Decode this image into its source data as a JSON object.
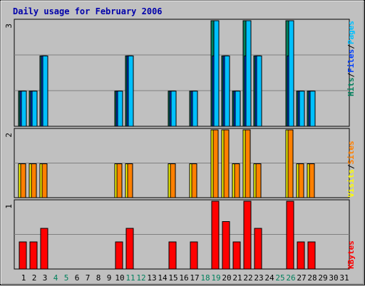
{
  "title": "Daily usage for February 2006",
  "colors": {
    "background": "#c0c0c0",
    "plot": "#c0c0c0",
    "title": "#0000aa",
    "hits": "#00805c",
    "files": "#0040ff",
    "pages": "#00c0ff",
    "visits": "#ffff00",
    "sites": "#ff8000",
    "kbytes": "#ff0000",
    "weekend_day": "#00805c",
    "weekday": "#000000"
  },
  "legend_top": [
    "Hits",
    "/",
    "Files",
    "/",
    "Pages"
  ],
  "legend_mid": [
    "Visits",
    "/",
    "Sites"
  ],
  "legend_bottom": [
    "KBytes"
  ],
  "y_max_labels": {
    "top": "3",
    "mid": "2",
    "bottom": "1"
  },
  "days": [
    "1",
    "2",
    "3",
    "4",
    "5",
    "6",
    "7",
    "8",
    "9",
    "10",
    "11",
    "12",
    "13",
    "14",
    "15",
    "16",
    "17",
    "18",
    "19",
    "20",
    "21",
    "22",
    "23",
    "24",
    "25",
    "26",
    "27",
    "28",
    "29",
    "30",
    "31"
  ],
  "weekend_days": [
    "4",
    "5",
    "11",
    "12",
    "18",
    "19",
    "25",
    "26"
  ],
  "chart_data": [
    {
      "type": "bar",
      "name": "hits-files-pages",
      "categories": [
        "1",
        "2",
        "3",
        "4",
        "5",
        "6",
        "7",
        "8",
        "9",
        "10",
        "11",
        "12",
        "13",
        "14",
        "15",
        "16",
        "17",
        "18",
        "19",
        "20",
        "21",
        "22",
        "23",
        "24",
        "25",
        "26",
        "27",
        "28",
        "29",
        "30",
        "31"
      ],
      "ylim": [
        0,
        3
      ],
      "series": [
        {
          "name": "Hits",
          "values": [
            1,
            1,
            2,
            0,
            0,
            0,
            0,
            0,
            0,
            1,
            2,
            0,
            0,
            0,
            1,
            0,
            1,
            0,
            3,
            2,
            1,
            3,
            2,
            0,
            0,
            3,
            1,
            1,
            0,
            0,
            0
          ]
        },
        {
          "name": "Files",
          "values": [
            1,
            1,
            2,
            0,
            0,
            0,
            0,
            0,
            0,
            1,
            2,
            0,
            0,
            0,
            1,
            0,
            1,
            0,
            2,
            2,
            1,
            2,
            2,
            0,
            0,
            2,
            1,
            1,
            0,
            0,
            0
          ]
        },
        {
          "name": "Pages",
          "values": [
            1,
            1,
            2,
            0,
            0,
            0,
            0,
            0,
            0,
            1,
            2,
            0,
            0,
            0,
            1,
            0,
            1,
            0,
            3,
            2,
            1,
            3,
            2,
            0,
            0,
            3,
            1,
            1,
            0,
            0,
            0
          ]
        }
      ]
    },
    {
      "type": "bar",
      "name": "visits-sites",
      "categories": [
        "1",
        "2",
        "3",
        "4",
        "5",
        "6",
        "7",
        "8",
        "9",
        "10",
        "11",
        "12",
        "13",
        "14",
        "15",
        "16",
        "17",
        "18",
        "19",
        "20",
        "21",
        "22",
        "23",
        "24",
        "25",
        "26",
        "27",
        "28",
        "29",
        "30",
        "31"
      ],
      "ylim": [
        0,
        2
      ],
      "series": [
        {
          "name": "Visits",
          "values": [
            1,
            1,
            1,
            0,
            0,
            0,
            0,
            0,
            0,
            1,
            1,
            0,
            0,
            0,
            1,
            0,
            1,
            0,
            2,
            2,
            1,
            2,
            1,
            0,
            0,
            2,
            1,
            1,
            0,
            0,
            0
          ]
        },
        {
          "name": "Sites",
          "values": [
            1,
            1,
            1,
            0,
            0,
            0,
            0,
            0,
            0,
            1,
            1,
            0,
            0,
            0,
            1,
            0,
            1,
            0,
            2,
            2,
            1,
            2,
            1,
            0,
            0,
            2,
            1,
            1,
            0,
            0,
            0
          ]
        }
      ]
    },
    {
      "type": "bar",
      "name": "kbytes",
      "categories": [
        "1",
        "2",
        "3",
        "4",
        "5",
        "6",
        "7",
        "8",
        "9",
        "10",
        "11",
        "12",
        "13",
        "14",
        "15",
        "16",
        "17",
        "18",
        "19",
        "20",
        "21",
        "22",
        "23",
        "24",
        "25",
        "26",
        "27",
        "28",
        "29",
        "30",
        "31"
      ],
      "ylim": [
        0,
        1
      ],
      "series": [
        {
          "name": "KBytes",
          "values": [
            0.4,
            0.4,
            0.6,
            0,
            0,
            0,
            0,
            0,
            0,
            0.4,
            0.6,
            0,
            0,
            0,
            0.4,
            0,
            0.4,
            0,
            1.0,
            0.7,
            0.4,
            1.0,
            0.6,
            0,
            0,
            1.0,
            0.4,
            0.4,
            0,
            0,
            0
          ]
        }
      ]
    }
  ]
}
